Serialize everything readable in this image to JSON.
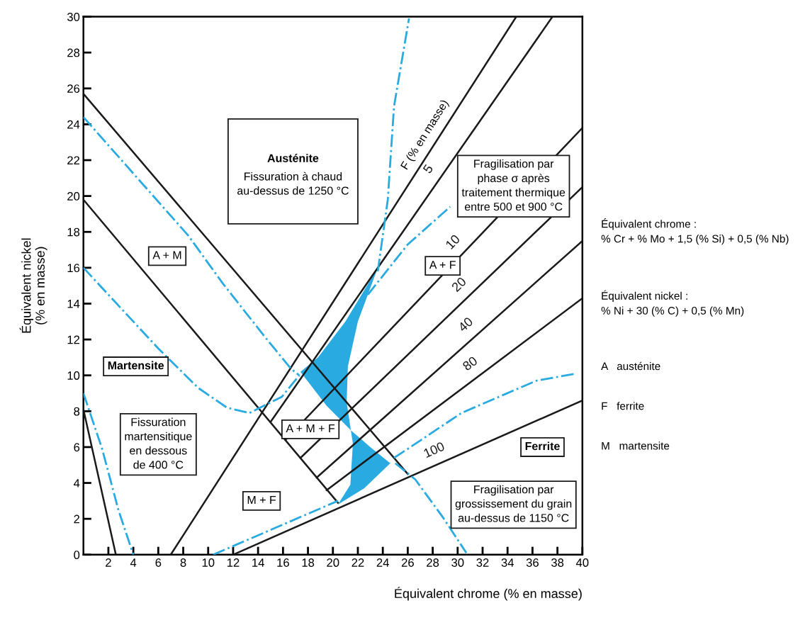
{
  "chart_data": {
    "type": "line",
    "xlabel": "Équivalent chrome (% en masse)",
    "ylabel": "Équivalent nickel\n(% en masse)",
    "xlim": [
      0,
      40
    ],
    "ylim": [
      0,
      30
    ],
    "xticks": [
      2,
      4,
      6,
      8,
      10,
      12,
      14,
      16,
      18,
      20,
      22,
      24,
      26,
      28,
      30,
      32,
      34,
      36,
      38,
      40
    ],
    "yticks": [
      0,
      2,
      4,
      6,
      8,
      10,
      12,
      14,
      16,
      18,
      20,
      22,
      24,
      26,
      28,
      30
    ],
    "grid": false,
    "marker": "none",
    "series": [
      {
        "color": "#29abe2",
        "type": "area",
        "x": [
          23.6,
          21.0,
          18.8,
          17.4,
          19.5,
          21.5,
          23.0,
          24.6,
          22.5,
          20.4,
          21.4,
          21.6,
          21.1,
          21.2,
          22.0,
          23.6
        ],
        "values": [
          16.0,
          13.0,
          11.0,
          10.2,
          8.3,
          6.9,
          6.0,
          5.1,
          3.7,
          2.8,
          3.9,
          6.2,
          8.5,
          10.5,
          13.0,
          16.0
        ]
      },
      {
        "color": "#1a1a1a",
        "line_style": "solid",
        "x": [
          0,
          26
        ],
        "values": [
          25.7,
          4.5
        ]
      },
      {
        "color": "#1a1a1a",
        "line_style": "solid",
        "x": [
          0,
          20.4
        ],
        "values": [
          19.8,
          2.9
        ]
      },
      {
        "color": "#1a1a1a",
        "line_style": "solid",
        "x": [
          0,
          2.6
        ],
        "values": [
          8.1,
          0
        ]
      },
      {
        "color": "#1a1a1a",
        "line_style": "solid",
        "x": [
          7,
          34.7
        ],
        "values": [
          0,
          30
        ]
      },
      {
        "name": "5",
        "color": "#1a1a1a",
        "line_style": "solid",
        "x": [
          15.0,
          37.6
        ],
        "values": [
          7.4,
          30
        ]
      },
      {
        "name": "10",
        "color": "#1a1a1a",
        "line_style": "solid",
        "x": [
          16.2,
          40
        ],
        "values": [
          6.4,
          23.8
        ]
      },
      {
        "name": "20",
        "color": "#1a1a1a",
        "line_style": "solid",
        "x": [
          17.4,
          40
        ],
        "values": [
          5.4,
          20.5
        ]
      },
      {
        "name": "40",
        "color": "#1a1a1a",
        "line_style": "solid",
        "x": [
          18.7,
          40
        ],
        "values": [
          4.3,
          17.5
        ]
      },
      {
        "name": "80",
        "color": "#1a1a1a",
        "line_style": "solid",
        "x": [
          19.5,
          40
        ],
        "values": [
          3.6,
          14.3
        ]
      },
      {
        "name": "100",
        "color": "#1a1a1a",
        "line_style": "solid",
        "x": [
          12,
          40
        ],
        "values": [
          0,
          8.6
        ]
      },
      {
        "color": "#29abe2",
        "line_style": "dashdot",
        "x": [
          0,
          8.4,
          11.2,
          14.6,
          16.6,
          17.3
        ],
        "values": [
          24.4,
          17.8,
          15.1,
          12.1,
          10.4,
          10.0
        ]
      },
      {
        "color": "#29abe2",
        "line_style": "dashdot",
        "x": [
          0,
          6.0,
          9.2,
          11.5,
          13.3,
          15.9,
          17.3
        ],
        "values": [
          16.0,
          11.5,
          9.3,
          8.2,
          7.9,
          8.8,
          10.0
        ]
      },
      {
        "color": "#29abe2",
        "line_style": "dashdot",
        "x": [
          0,
          1.5,
          2.8,
          4.0
        ],
        "values": [
          9.0,
          5.9,
          2.5,
          0
        ]
      },
      {
        "color": "#29abe2",
        "line_style": "dashdot",
        "x": [
          23.6,
          24.4,
          24.9,
          26.1
        ],
        "values": [
          15.8,
          19.8,
          25.0,
          29.9
        ]
      },
      {
        "color": "#29abe2",
        "line_style": "dashdot",
        "x": [
          22.8,
          26.0,
          29.4
        ],
        "values": [
          14.5,
          17.3,
          19.4
        ]
      },
      {
        "color": "#29abe2",
        "line_style": "dashdot",
        "x": [
          24.9,
          26.0,
          30.3,
          36.3,
          39.5
        ],
        "values": [
          5.4,
          5.9,
          7.9,
          9.7,
          10.1
        ]
      },
      {
        "color": "#29abe2",
        "line_style": "dashdot",
        "x": [
          25.0,
          26.6,
          28.8,
          30.7
        ],
        "values": [
          5.1,
          4.2,
          2.1,
          0.1
        ]
      },
      {
        "color": "#29abe2",
        "line_style": "dashdot",
        "x": [
          10.4,
          20.4
        ],
        "values": [
          0,
          3.0
        ]
      }
    ],
    "annotations": [
      "Austénite",
      "Fissuration à chaud\nau-dessus de 1250 °C",
      "A + M",
      "Martensite",
      "Fissuration\nmartensitique\nen dessous\nde 400 °C",
      "M + F",
      "A + M + F",
      "A + F",
      "Fragilisation par\nphase σ après\ntraitement thermique\nentre 500 et 900 °C",
      "Ferrite",
      "Fragilisation par\ngrossissement du grain\nau-dessus de 1150 °C",
      "F (% en masse)",
      "Équivalent chrome :\n% Cr + % Mo + 1,5 (% Si) + 0,5 (% Nb)",
      "Équivalent nickel :\n% Ni + 30 (% C) + 0,5 (% Mn)",
      "A   austénite",
      "F   ferrite",
      "M   martensite"
    ]
  }
}
